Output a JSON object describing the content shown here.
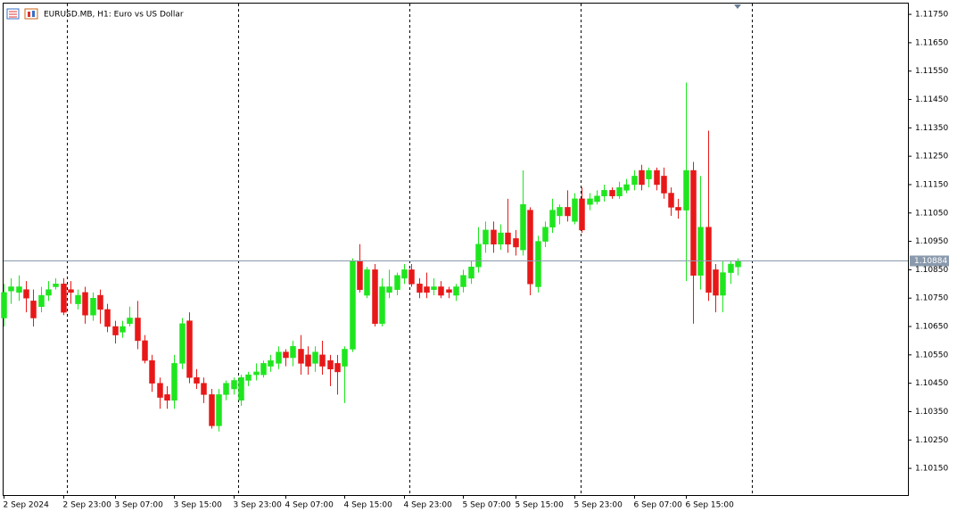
{
  "chart_data": {
    "type": "candlestick",
    "title": "EURUSD.MB, H1:  Euro vs US Dollar",
    "categories": [
      "2 Sep 2024",
      null,
      null,
      null,
      null,
      null,
      null,
      null,
      "2 Sep 23:00",
      null,
      null,
      null,
      null,
      null,
      null,
      "3 Sep 07:00",
      null,
      null,
      null,
      null,
      null,
      null,
      null,
      "3 Sep 15:00",
      null,
      null,
      null,
      null,
      null,
      null,
      null,
      "3 Sep 23:00",
      null,
      null,
      null,
      null,
      null,
      null,
      "4 Sep 07:00",
      null,
      null,
      null,
      null,
      null,
      null,
      null,
      "4 Sep 15:00",
      null,
      null,
      null,
      null,
      null,
      null,
      null,
      "4 Sep 23:00",
      null,
      null,
      null,
      null,
      null,
      null,
      null,
      "5 Sep 07:00",
      null,
      null,
      null,
      null,
      null,
      null,
      "5 Sep 15:00",
      null,
      null,
      null,
      null,
      null,
      null,
      null,
      "5 Sep 23:00",
      null,
      null,
      null,
      null,
      null,
      null,
      null,
      "6 Sep 07:00",
      null,
      null,
      null,
      null,
      null,
      null,
      "6 Sep 15:00",
      null,
      null,
      null,
      null,
      null,
      null,
      null
    ],
    "open": [
      1.1068,
      1.10775,
      1.1077,
      1.1078,
      1.1074,
      1.1072,
      1.1076,
      1.1079,
      1.108,
      1.1078,
      1.1073,
      1.1077,
      1.1069,
      1.1076,
      1.1071,
      1.1065,
      1.1063,
      1.1066,
      1.1068,
      1.106,
      1.1053,
      1.1045,
      1.1041,
      1.1039,
      1.1052,
      1.1067,
      1.1047,
      1.1045,
      1.1041,
      1.103,
      1.1041,
      1.1043,
      1.1039,
      1.1046,
      1.1048,
      1.1048,
      1.1051,
      1.1052,
      1.1056,
      1.1054,
      1.1057,
      1.1055,
      1.1052,
      1.1055,
      1.1053,
      1.1052,
      1.1051,
      1.1057,
      1.1088,
      1.1076,
      1.1085,
      1.1066,
      1.1077,
      1.1078,
      1.1082,
      1.1085,
      1.108,
      1.1079,
      1.1078,
      1.1079,
      1.1078,
      1.1076,
      1.1079,
      1.1082,
      1.1086,
      1.1094,
      1.1099,
      1.1094,
      1.1098,
      1.1096,
      1.1092,
      1.1106,
      1.1079,
      1.1095,
      1.11,
      1.1104,
      1.1107,
      1.1102,
      1.111,
      1.1108,
      1.1109,
      1.1111,
      1.1113,
      1.1111,
      1.1113,
      1.1115,
      1.112,
      1.1117,
      1.112,
      1.1118,
      1.1112,
      1.1107,
      1.1106,
      1.112,
      1.1083,
      1.11,
      1.1085,
      1.1076,
      1.1084,
      1.1086
    ],
    "high": [
      1.108,
      1.1082,
      1.1083,
      1.1081,
      1.1078,
      1.1079,
      1.1081,
      1.1082,
      1.1082,
      1.1081,
      1.1078,
      1.1079,
      1.1077,
      1.1078,
      1.1073,
      1.1067,
      1.1067,
      1.1072,
      1.1074,
      1.1062,
      1.1055,
      1.1047,
      1.1044,
      1.1055,
      1.1068,
      1.107,
      1.105,
      1.1047,
      1.1043,
      1.1043,
      1.1046,
      1.1047,
      1.1048,
      1.1049,
      1.1052,
      1.1053,
      1.1055,
      1.1058,
      1.1057,
      1.106,
      1.1062,
      1.1058,
      1.1058,
      1.106,
      1.1055,
      1.1055,
      1.1058,
      1.1089,
      1.1094,
      1.1086,
      1.1087,
      1.1082,
      1.1085,
      1.1084,
      1.1087,
      1.1087,
      1.1082,
      1.1084,
      1.1082,
      1.1081,
      1.1079,
      1.108,
      1.1085,
      1.1088,
      1.11,
      1.1102,
      1.1102,
      1.1101,
      1.111,
      1.1099,
      1.112,
      1.1107,
      1.1097,
      1.1102,
      1.111,
      1.1108,
      1.1113,
      1.1112,
      1.1114,
      1.1112,
      1.1113,
      1.1115,
      1.1114,
      1.1116,
      1.1117,
      1.112,
      1.1122,
      1.1121,
      1.1121,
      1.1121,
      1.1114,
      1.111,
      1.1151,
      1.1123,
      1.1118,
      1.1134,
      1.1087,
      1.1088,
      1.1088,
      1.1089
    ],
    "low": [
      1.1065,
      1.1073,
      1.1074,
      1.107,
      1.1065,
      1.107,
      1.1074,
      1.1078,
      1.1069,
      1.1073,
      1.1071,
      1.1066,
      1.1067,
      1.1066,
      1.1063,
      1.1059,
      1.1061,
      1.1065,
      1.1057,
      1.1052,
      1.1042,
      1.1036,
      1.1036,
      1.1036,
      1.105,
      1.1045,
      1.1043,
      1.1038,
      1.1029,
      1.1028,
      1.1039,
      1.1041,
      1.1037,
      1.1044,
      1.1046,
      1.1047,
      1.1049,
      1.105,
      1.1051,
      1.1051,
      1.1048,
      1.1048,
      1.1049,
      1.1048,
      1.1044,
      1.1041,
      1.1038,
      1.1056,
      1.1077,
      1.1075,
      1.1065,
      1.1065,
      1.1075,
      1.1076,
      1.108,
      1.1079,
      1.1075,
      1.1075,
      1.1076,
      1.1075,
      1.1075,
      1.1074,
      1.1077,
      1.108,
      1.1084,
      1.1091,
      1.1091,
      1.1092,
      1.1091,
      1.109,
      1.109,
      1.1076,
      1.1077,
      1.1093,
      1.1098,
      1.1101,
      1.1102,
      1.1101,
      1.1098,
      1.1106,
      1.1108,
      1.1109,
      1.111,
      1.111,
      1.1112,
      1.1113,
      1.1113,
      1.1114,
      1.1113,
      1.111,
      1.1104,
      1.1103,
      1.1081,
      1.1066,
      1.1078,
      1.1074,
      1.107,
      1.107,
      1.108,
      1.1083
    ],
    "close": [
      1.1077,
      1.1079,
      1.1079,
      1.1075,
      1.1068,
      1.1076,
      1.1078,
      1.108,
      1.107,
      1.1077,
      1.1076,
      1.1069,
      1.1075,
      1.1071,
      1.1065,
      1.1062,
      1.1065,
      1.1068,
      1.106,
      1.1053,
      1.1045,
      1.104,
      1.1039,
      1.1052,
      1.1066,
      1.1047,
      1.1045,
      1.1041,
      1.103,
      1.1041,
      1.1045,
      1.1046,
      1.1047,
      1.1048,
      1.1049,
      1.1052,
      1.1053,
      1.1056,
      1.1054,
      1.1058,
      1.1052,
      1.1051,
      1.1056,
      1.1051,
      1.105,
      1.1049,
      1.1057,
      1.1088,
      1.1078,
      1.1085,
      1.1066,
      1.1079,
      1.1079,
      1.1083,
      1.1085,
      1.108,
      1.1077,
      1.1077,
      1.1079,
      1.1076,
      1.1077,
      1.1079,
      1.1083,
      1.1086,
      1.1094,
      1.1099,
      1.1094,
      1.1098,
      1.1094,
      1.1093,
      1.1108,
      1.108,
      1.1095,
      1.11,
      1.1106,
      1.1107,
      1.1104,
      1.111,
      1.1099,
      1.111,
      1.1111,
      1.1113,
      1.1111,
      1.1114,
      1.1115,
      1.1118,
      1.1115,
      1.112,
      1.1115,
      1.1112,
      1.1107,
      1.1106,
      1.112,
      1.1083,
      1.11,
      1.1077,
      1.1076,
      1.1084,
      1.1087,
      1.1088
    ],
    "up_color": "#1ee61e",
    "down_color": "#e81818",
    "current_price": 1.10884,
    "ylim": [
      1.10056,
      1.11788
    ],
    "yticks": [
      {
        "value": 1.1175,
        "label": "1.11750"
      },
      {
        "value": 1.1165,
        "label": "1.11650"
      },
      {
        "value": 1.1155,
        "label": "1.11550"
      },
      {
        "value": 1.1145,
        "label": "1.11450"
      },
      {
        "value": 1.1135,
        "label": "1.11350"
      },
      {
        "value": 1.1125,
        "label": "1.11250"
      },
      {
        "value": 1.1115,
        "label": "1.11150"
      },
      {
        "value": 1.1105,
        "label": "1.11050"
      },
      {
        "value": 1.1095,
        "label": "1.10950"
      },
      {
        "value": 1.1085,
        "label": "1.10850"
      },
      {
        "value": 1.1075,
        "label": "1.10750"
      },
      {
        "value": 1.1065,
        "label": "1.10650"
      },
      {
        "value": 1.1055,
        "label": "1.10550"
      },
      {
        "value": 1.1045,
        "label": "1.10450"
      },
      {
        "value": 1.1035,
        "label": "1.10350"
      },
      {
        "value": 1.1025,
        "label": "1.10250"
      },
      {
        "value": 1.1015,
        "label": "1.10150"
      }
    ]
  }
}
